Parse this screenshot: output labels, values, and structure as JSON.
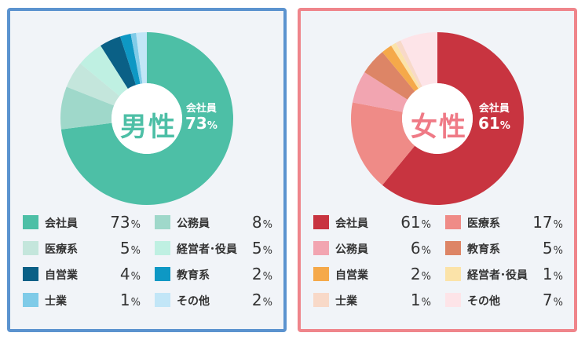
{
  "chart_data": [
    {
      "type": "pie",
      "center_label": "男性",
      "callout": {
        "name": "会社員",
        "value": "73",
        "unit": "%"
      },
      "unit": "%",
      "slices": [
        {
          "label": "会社員",
          "value": 73,
          "color": "#4dbfa6"
        },
        {
          "label": "公務員",
          "value": 8,
          "color": "#9fd8ca"
        },
        {
          "label": "医療系",
          "value": 5,
          "color": "#c4e6dc"
        },
        {
          "label": "経営者･役員",
          "value": 5,
          "color": "#bff0e2"
        },
        {
          "label": "自営業",
          "value": 4,
          "color": "#0a6086"
        },
        {
          "label": "教育系",
          "value": 2,
          "color": "#0e98c4"
        },
        {
          "label": "士業",
          "value": 1,
          "color": "#7fcbe8"
        },
        {
          "label": "その他",
          "value": 2,
          "color": "#c2e6f7"
        }
      ],
      "legend_order": [
        "会社員",
        "公務員",
        "医療系",
        "経営者･役員",
        "自営業",
        "教育系",
        "士業",
        "その他"
      ],
      "accent_color": "#4dbfa6",
      "border_color": "#5b93cf"
    },
    {
      "type": "pie",
      "center_label": "女性",
      "callout": {
        "name": "会社員",
        "value": "61",
        "unit": "%"
      },
      "unit": "%",
      "slices": [
        {
          "label": "会社員",
          "value": 61,
          "color": "#c83440"
        },
        {
          "label": "医療系",
          "value": 17,
          "color": "#ef8b87"
        },
        {
          "label": "公務員",
          "value": 6,
          "color": "#f2a5b1"
        },
        {
          "label": "教育系",
          "value": 5,
          "color": "#dd8566"
        },
        {
          "label": "自営業",
          "value": 2,
          "color": "#f5a94a"
        },
        {
          "label": "経営者･役員",
          "value": 1,
          "color": "#fbe3a9"
        },
        {
          "label": "士業",
          "value": 1,
          "color": "#f8d9c8"
        },
        {
          "label": "その他",
          "value": 7,
          "color": "#fde4e8"
        }
      ],
      "legend_order": [
        "会社員",
        "医療系",
        "公務員",
        "教育系",
        "自営業",
        "経営者･役員",
        "士業",
        "その他"
      ],
      "accent_color": "#ef7a86",
      "border_color": "#ef858b"
    }
  ]
}
